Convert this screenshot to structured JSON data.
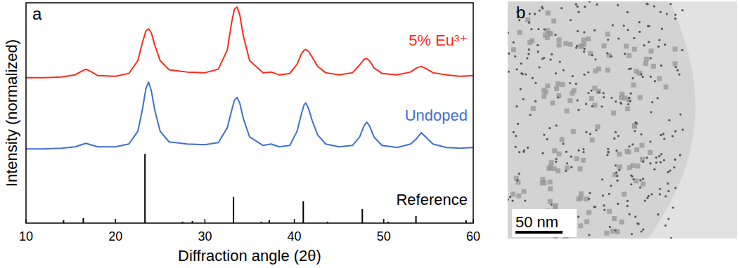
{
  "chart_data": [
    {
      "type": "line",
      "panel": "a",
      "x_label": "Diffraction angle (2θ)",
      "y_label": "Intensity (normalized)",
      "xlim": [
        10,
        60
      ],
      "xticks": [
        10,
        20,
        30,
        40,
        50,
        60
      ],
      "ylim": [
        0,
        3.12
      ],
      "tick_labels": "x",
      "series": [
        {
          "name": "5% Eu³⁺",
          "color": "#ff2a1a",
          "type": "line",
          "x": [
            10,
            12,
            14,
            15.5,
            16.2,
            16.7,
            17.2,
            18,
            20,
            21.5,
            22.5,
            23,
            23.4,
            23.7,
            24,
            24.4,
            25,
            26,
            28,
            30,
            31.5,
            32.5,
            33,
            33.3,
            33.6,
            33.9,
            34.3,
            35,
            36.5,
            37.4,
            38.3,
            39.5,
            40.3,
            40.8,
            41.1,
            41.3,
            41.6,
            42,
            42.6,
            43.5,
            45,
            46.5,
            47.3,
            47.8,
            48.1,
            48.4,
            48.9,
            49.8,
            51.5,
            53,
            53.7,
            54.2,
            54.7,
            55.5,
            57,
            58.5,
            60
          ],
          "values": [
            2.06,
            2.06,
            2.07,
            2.1,
            2.15,
            2.18,
            2.15,
            2.09,
            2.08,
            2.12,
            2.3,
            2.55,
            2.72,
            2.75,
            2.7,
            2.52,
            2.3,
            2.17,
            2.14,
            2.13,
            2.18,
            2.45,
            2.85,
            3.03,
            3.06,
            2.95,
            2.65,
            2.3,
            2.13,
            2.14,
            2.1,
            2.12,
            2.25,
            2.4,
            2.45,
            2.46,
            2.43,
            2.35,
            2.22,
            2.13,
            2.1,
            2.13,
            2.24,
            2.32,
            2.33,
            2.3,
            2.2,
            2.12,
            2.1,
            2.14,
            2.2,
            2.22,
            2.19,
            2.13,
            2.1,
            2.08,
            2.09
          ]
        },
        {
          "name": "Undoped",
          "color": "#3f6fd1",
          "type": "line",
          "x": [
            10,
            12,
            14,
            15.5,
            16.2,
            16.7,
            17.2,
            18,
            20,
            21.5,
            22.5,
            23,
            23.4,
            23.7,
            24,
            24.4,
            25,
            26,
            28,
            30,
            31.5,
            32.5,
            33,
            33.3,
            33.6,
            33.9,
            34.3,
            35,
            36.5,
            37.4,
            38.3,
            39.5,
            40.3,
            40.8,
            41.1,
            41.3,
            41.6,
            42,
            42.6,
            43.5,
            45,
            46.5,
            47.3,
            47.8,
            48.1,
            48.4,
            48.9,
            49.8,
            51.5,
            53,
            53.7,
            54.2,
            54.7,
            55.5,
            57,
            58.5,
            60
          ],
          "values": [
            1.05,
            1.05,
            1.06,
            1.08,
            1.11,
            1.13,
            1.11,
            1.08,
            1.08,
            1.12,
            1.3,
            1.6,
            1.9,
            2.0,
            1.88,
            1.6,
            1.3,
            1.15,
            1.12,
            1.11,
            1.14,
            1.35,
            1.6,
            1.74,
            1.78,
            1.7,
            1.48,
            1.22,
            1.1,
            1.12,
            1.08,
            1.1,
            1.3,
            1.55,
            1.68,
            1.7,
            1.62,
            1.45,
            1.25,
            1.12,
            1.08,
            1.1,
            1.22,
            1.38,
            1.43,
            1.38,
            1.22,
            1.1,
            1.07,
            1.12,
            1.2,
            1.28,
            1.22,
            1.12,
            1.07,
            1.06,
            1.07
          ]
        },
        {
          "name": "Reference",
          "color": "#000000",
          "type": "stick",
          "x": [
            14.2,
            16.4,
            23.3,
            27.5,
            28.6,
            33.2,
            36.3,
            37.2,
            41.0,
            43.7,
            47.6,
            50.5,
            53.6,
            59.2
          ],
          "values": [
            0.04,
            0.07,
            0.98,
            0.02,
            0.03,
            0.37,
            0.02,
            0.04,
            0.31,
            0.02,
            0.2,
            0.02,
            0.1,
            0.04
          ]
        }
      ]
    },
    {
      "type": "image",
      "panel": "b",
      "scale_bar": "50 nm"
    }
  ]
}
